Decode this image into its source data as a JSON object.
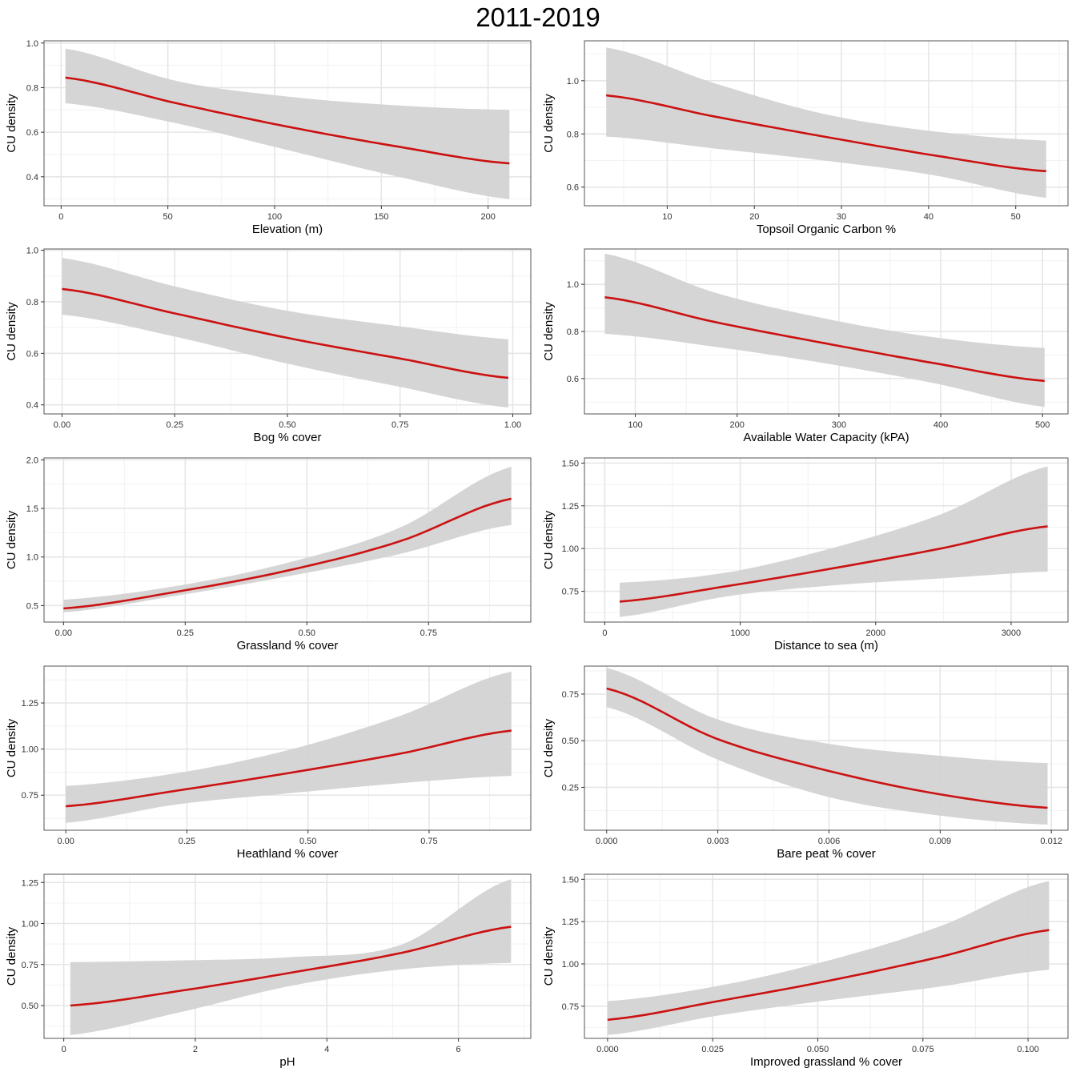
{
  "figure": {
    "title": "2011-2019"
  },
  "colors": {
    "line": "#cc1111",
    "ribbon": "#d3d3d3",
    "grid_major": "#e6e6e6",
    "grid_minor": "#f2f2f2",
    "border": "#555555"
  },
  "chart_data": [
    {
      "type": "line",
      "title": "",
      "xlabel": "Elevation (m)",
      "ylabel": "CU density",
      "xlim": [
        -8,
        220
      ],
      "ylim": [
        0.27,
        1.01
      ],
      "xticks": [
        0,
        50,
        100,
        150,
        200
      ],
      "xtick_labels": [
        "0",
        "50",
        "100",
        "150",
        "200"
      ],
      "yticks": [
        0.4,
        0.6,
        0.8,
        1.0
      ],
      "ytick_labels": [
        "0.4",
        "0.6",
        "0.8",
        "1.0"
      ],
      "x": [
        2,
        54,
        106,
        158,
        210
      ],
      "y": [
        0.845,
        0.73,
        0.625,
        0.535,
        0.46
      ],
      "lower": [
        0.73,
        0.64,
        0.52,
        0.4,
        0.3
      ],
      "upper": [
        0.975,
        0.83,
        0.76,
        0.72,
        0.7
      ]
    },
    {
      "type": "line",
      "title": "",
      "xlabel": "Topsoil Organic Carbon %",
      "ylabel": "CU density",
      "xlim": [
        0.5,
        56
      ],
      "ylim": [
        0.53,
        1.15
      ],
      "xticks": [
        10,
        20,
        30,
        40,
        50
      ],
      "xtick_labels": [
        "10",
        "20",
        "30",
        "40",
        "50"
      ],
      "yticks": [
        0.6,
        0.8,
        1.0
      ],
      "ytick_labels": [
        "0.6",
        "0.8",
        "1.0"
      ],
      "x": [
        3,
        15.5,
        28,
        40.5,
        53.5
      ],
      "y": [
        0.945,
        0.865,
        0.79,
        0.72,
        0.66
      ],
      "lower": [
        0.79,
        0.745,
        0.7,
        0.645,
        0.56
      ],
      "upper": [
        1.125,
        0.99,
        0.875,
        0.81,
        0.775
      ]
    },
    {
      "type": "line",
      "title": "",
      "xlabel": "Bog % cover",
      "ylabel": "CU density",
      "xlim": [
        -0.04,
        1.04
      ],
      "ylim": [
        0.365,
        1.005
      ],
      "xticks": [
        0,
        0.25,
        0.5,
        0.75,
        1.0
      ],
      "xtick_labels": [
        "0.00",
        "0.25",
        "0.50",
        "0.75",
        "1.00"
      ],
      "yticks": [
        0.4,
        0.6,
        0.8,
        1.0
      ],
      "ytick_labels": [
        "0.4",
        "0.6",
        "0.8",
        "1.0"
      ],
      "x": [
        0,
        0.25,
        0.5,
        0.75,
        0.99
      ],
      "y": [
        0.85,
        0.755,
        0.66,
        0.58,
        0.505
      ],
      "lower": [
        0.75,
        0.665,
        0.56,
        0.47,
        0.39
      ],
      "upper": [
        0.97,
        0.86,
        0.765,
        0.705,
        0.655
      ]
    },
    {
      "type": "line",
      "title": "",
      "xlabel": "Available Water Capacity (kPA)",
      "ylabel": "CU density",
      "xlim": [
        50,
        525
      ],
      "ylim": [
        0.45,
        1.15
      ],
      "xticks": [
        100,
        200,
        300,
        400,
        500
      ],
      "xtick_labels": [
        "100",
        "200",
        "300",
        "400",
        "500"
      ],
      "yticks": [
        0.6,
        0.8,
        1.0
      ],
      "ytick_labels": [
        "0.6",
        "0.8",
        "1.0"
      ],
      "x": [
        70,
        178,
        286,
        394,
        502
      ],
      "y": [
        0.945,
        0.84,
        0.75,
        0.665,
        0.59
      ],
      "lower": [
        0.79,
        0.735,
        0.665,
        0.58,
        0.48
      ],
      "upper": [
        1.13,
        0.965,
        0.855,
        0.775,
        0.73
      ]
    },
    {
      "type": "line",
      "title": "",
      "xlabel": "Grassland % cover",
      "ylabel": "CU density",
      "xlim": [
        -0.04,
        0.96
      ],
      "ylim": [
        0.33,
        2.02
      ],
      "xticks": [
        0,
        0.25,
        0.5,
        0.75
      ],
      "xtick_labels": [
        "0.00",
        "0.25",
        "0.50",
        "0.75"
      ],
      "yticks": [
        0.5,
        1.0,
        1.5,
        2.0
      ],
      "ytick_labels": [
        "0.5",
        "1.0",
        "1.5",
        "2.0"
      ],
      "x": [
        0,
        0.23,
        0.46,
        0.69,
        0.92
      ],
      "y": [
        0.47,
        0.64,
        0.86,
        1.16,
        1.6
      ],
      "lower": [
        0.43,
        0.6,
        0.8,
        1.03,
        1.33
      ],
      "upper": [
        0.56,
        0.7,
        0.94,
        1.3,
        1.93
      ]
    },
    {
      "type": "line",
      "title": "",
      "xlabel": "Distance to sea (m)",
      "ylabel": "CU density",
      "xlim": [
        -150,
        3420
      ],
      "ylim": [
        0.57,
        1.53
      ],
      "xticks": [
        0,
        1000,
        2000,
        3000
      ],
      "xtick_labels": [
        "0",
        "1000",
        "2000",
        "3000"
      ],
      "yticks": [
        0.75,
        1.0,
        1.25,
        1.5
      ],
      "ytick_labels": [
        "0.75",
        "1.00",
        "1.25",
        "1.50"
      ],
      "x": [
        110,
        900,
        1690,
        2480,
        3270
      ],
      "y": [
        0.69,
        0.78,
        0.885,
        1.0,
        1.13
      ],
      "lower": [
        0.6,
        0.72,
        0.785,
        0.825,
        0.865
      ],
      "upper": [
        0.8,
        0.86,
        1.005,
        1.2,
        1.48
      ]
    },
    {
      "type": "line",
      "title": "",
      "xlabel": "Heathland % cover",
      "ylabel": "CU density",
      "xlim": [
        -0.045,
        0.96
      ],
      "ylim": [
        0.56,
        1.45
      ],
      "xticks": [
        0,
        0.25,
        0.5,
        0.75
      ],
      "xtick_labels": [
        "0.00",
        "0.25",
        "0.50",
        "0.75"
      ],
      "yticks": [
        0.75,
        1.0,
        1.25
      ],
      "ytick_labels": [
        "0.75",
        "1.00",
        "1.25"
      ],
      "x": [
        0,
        0.23,
        0.46,
        0.69,
        0.92
      ],
      "y": [
        0.69,
        0.775,
        0.87,
        0.975,
        1.1
      ],
      "lower": [
        0.6,
        0.7,
        0.76,
        0.815,
        0.855
      ],
      "upper": [
        0.8,
        0.87,
        0.995,
        1.18,
        1.42
      ]
    },
    {
      "type": "line",
      "title": "",
      "xlabel": "Bare peat % cover",
      "ylabel": "CU density",
      "xlim": [
        -0.0006,
        0.01245
      ],
      "ylim": [
        0.02,
        0.9
      ],
      "xticks": [
        0,
        0.003,
        0.006,
        0.009,
        0.012
      ],
      "xtick_labels": [
        "0.000",
        "0.003",
        "0.006",
        "0.009",
        "0.012"
      ],
      "yticks": [
        0.25,
        0.5,
        0.75
      ],
      "ytick_labels": [
        "0.25",
        "0.50",
        "0.75"
      ],
      "x": [
        0,
        0.002975,
        0.00595,
        0.008925,
        0.0119
      ],
      "y": [
        0.78,
        0.51,
        0.34,
        0.215,
        0.14
      ],
      "lower": [
        0.68,
        0.4,
        0.2,
        0.1,
        0.05
      ],
      "upper": [
        0.89,
        0.615,
        0.485,
        0.42,
        0.38
      ]
    },
    {
      "type": "line",
      "title": "",
      "xlabel": "pH",
      "ylabel": "CU density",
      "xlim": [
        -0.3,
        7.1
      ],
      "ylim": [
        0.3,
        1.3
      ],
      "xticks": [
        0,
        2,
        4,
        6
      ],
      "xtick_labels": [
        "0",
        "2",
        "4",
        "6"
      ],
      "yticks": [
        0.5,
        0.75,
        1.0,
        1.25
      ],
      "ytick_labels": [
        "0.50",
        "0.75",
        "1.00",
        "1.25"
      ],
      "x": [
        0.1,
        1.775,
        3.45,
        5.125,
        6.8
      ],
      "y": [
        0.5,
        0.59,
        0.7,
        0.82,
        0.98
      ],
      "lower": [
        0.32,
        0.46,
        0.62,
        0.72,
        0.76
      ],
      "upper": [
        0.765,
        0.775,
        0.795,
        0.87,
        1.27
      ]
    },
    {
      "type": "line",
      "title": "",
      "xlabel": "Improved grassland % cover",
      "ylabel": "CU density",
      "xlim": [
        -0.0055,
        0.1095
      ],
      "ylim": [
        0.56,
        1.53
      ],
      "xticks": [
        0,
        0.025,
        0.05,
        0.075,
        0.1
      ],
      "xtick_labels": [
        "0.000",
        "0.025",
        "0.050",
        "0.075",
        "0.100"
      ],
      "yticks": [
        0.75,
        1.0,
        1.25,
        1.5
      ],
      "ytick_labels": [
        "0.75",
        "1.00",
        "1.25",
        "1.50"
      ],
      "x": [
        0,
        0.02625,
        0.0525,
        0.07875,
        0.105
      ],
      "y": [
        0.67,
        0.78,
        0.9,
        1.04,
        1.2
      ],
      "lower": [
        0.58,
        0.695,
        0.785,
        0.865,
        0.965
      ],
      "upper": [
        0.78,
        0.87,
        1.02,
        1.22,
        1.49
      ]
    }
  ]
}
